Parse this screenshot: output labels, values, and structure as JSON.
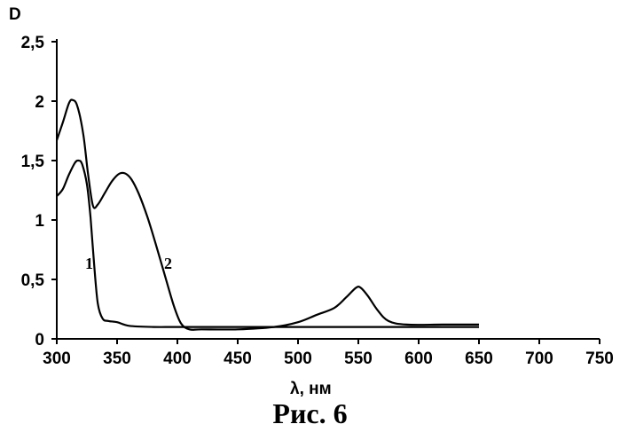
{
  "chart_data": {
    "type": "line",
    "xlabel": "λ, нм",
    "ylabel": "D",
    "xlim": [
      300,
      750
    ],
    "ylim": [
      0,
      2.5
    ],
    "x_ticks": [
      300,
      350,
      400,
      450,
      500,
      550,
      600,
      650,
      700,
      750
    ],
    "x_tick_labels": [
      "300",
      "350",
      "400",
      "450",
      "500",
      "550",
      "600",
      "650",
      "700",
      "750"
    ],
    "y_ticks": [
      0,
      0.5,
      1,
      1.5,
      2,
      2.5
    ],
    "y_tick_labels": [
      "0",
      "0,5",
      "1",
      "1,5",
      "2",
      "2,5"
    ],
    "grid": false,
    "series": [
      {
        "name": "1",
        "color": "#000000",
        "points": [
          [
            300,
            1.2
          ],
          [
            305,
            1.26
          ],
          [
            310,
            1.38
          ],
          [
            315,
            1.48
          ],
          [
            318,
            1.5
          ],
          [
            321,
            1.47
          ],
          [
            325,
            1.3
          ],
          [
            328,
            1.02
          ],
          [
            331,
            0.62
          ],
          [
            334,
            0.3
          ],
          [
            338,
            0.17
          ],
          [
            343,
            0.15
          ],
          [
            350,
            0.14
          ],
          [
            360,
            0.11
          ],
          [
            380,
            0.1
          ],
          [
            400,
            0.1
          ],
          [
            450,
            0.1
          ],
          [
            500,
            0.1
          ],
          [
            550,
            0.1
          ],
          [
            600,
            0.1
          ],
          [
            650,
            0.1
          ]
        ]
      },
      {
        "name": "2",
        "color": "#000000",
        "points": [
          [
            300,
            1.67
          ],
          [
            305,
            1.82
          ],
          [
            310,
            1.98
          ],
          [
            313,
            2.01
          ],
          [
            317,
            1.96
          ],
          [
            322,
            1.72
          ],
          [
            326,
            1.38
          ],
          [
            330,
            1.12
          ],
          [
            334,
            1.13
          ],
          [
            340,
            1.23
          ],
          [
            346,
            1.33
          ],
          [
            352,
            1.39
          ],
          [
            357,
            1.39
          ],
          [
            362,
            1.34
          ],
          [
            368,
            1.22
          ],
          [
            375,
            1.03
          ],
          [
            382,
            0.8
          ],
          [
            390,
            0.52
          ],
          [
            397,
            0.28
          ],
          [
            403,
            0.13
          ],
          [
            410,
            0.08
          ],
          [
            420,
            0.08
          ],
          [
            450,
            0.08
          ],
          [
            480,
            0.1
          ],
          [
            500,
            0.14
          ],
          [
            515,
            0.2
          ],
          [
            530,
            0.26
          ],
          [
            540,
            0.35
          ],
          [
            548,
            0.43
          ],
          [
            552,
            0.43
          ],
          [
            558,
            0.36
          ],
          [
            566,
            0.24
          ],
          [
            575,
            0.15
          ],
          [
            590,
            0.12
          ],
          [
            620,
            0.12
          ],
          [
            650,
            0.12
          ]
        ]
      }
    ],
    "curve_labels": [
      "1",
      "2"
    ]
  },
  "caption": "Рис. 6"
}
